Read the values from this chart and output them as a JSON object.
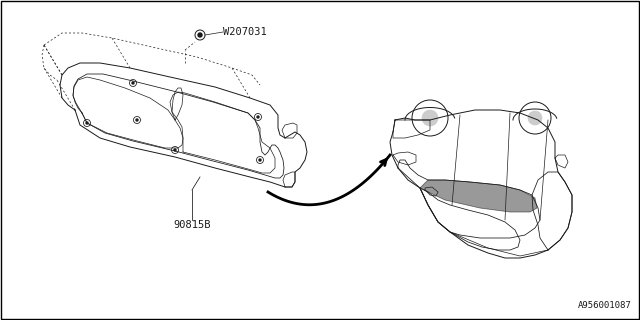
{
  "bg_color": "#ffffff",
  "border_color": "#000000",
  "line_color": "#1a1a1a",
  "text_color": "#1a1a1a",
  "part_label": "90815B",
  "fastener_label": "W207031",
  "diagram_id": "A956001087",
  "fig_width": 6.4,
  "fig_height": 3.2,
  "dpi": 100
}
